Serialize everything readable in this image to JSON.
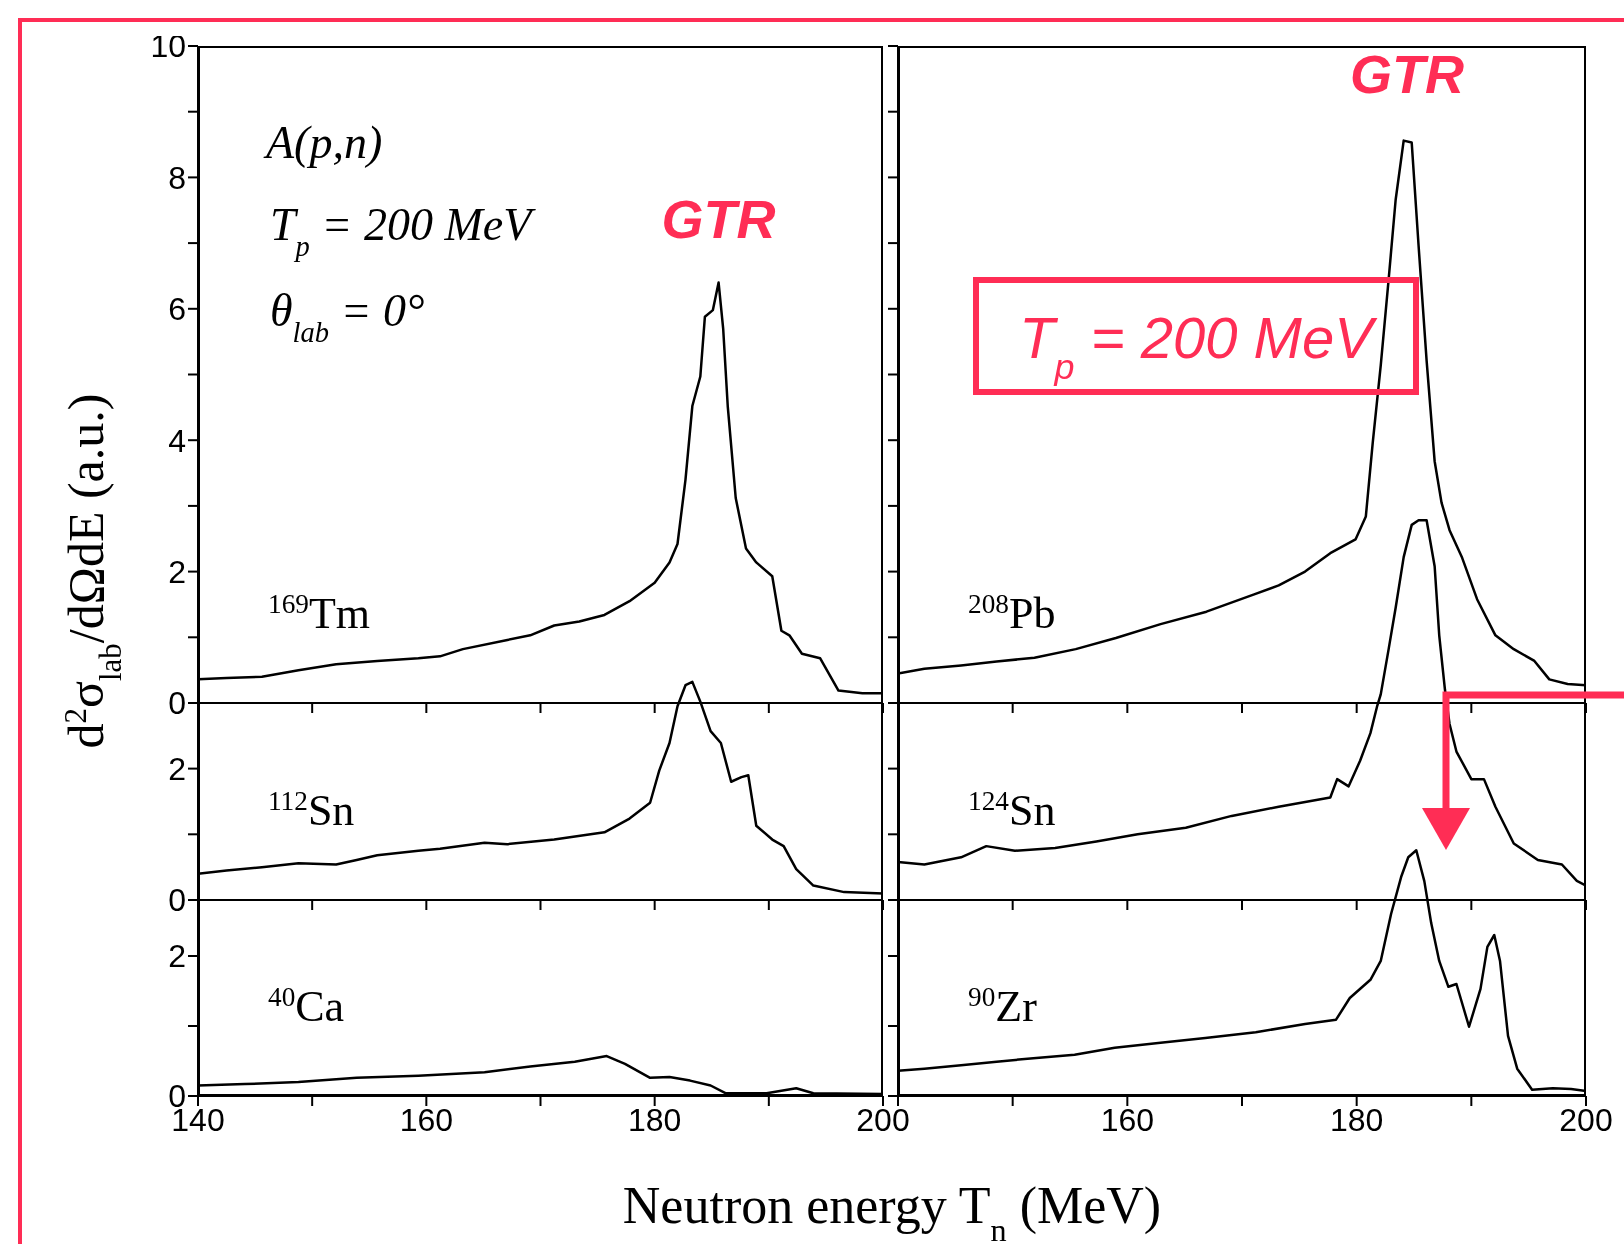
{
  "chart_data": [
    {
      "type": "line",
      "ylabel": "d$^{2}$σ$_{lab}$/dΩdE (a.u.)",
      "xlim": [
        140,
        200
      ],
      "xticks": [
        140,
        150,
        160,
        170,
        180,
        190,
        200
      ],
      "ylim": [
        0,
        10
      ],
      "yticks": [
        0,
        {
          "value": 1,
          "label": null
        },
        2,
        {
          "value": 3,
          "label": null
        },
        4,
        {
          "value": 5,
          "label": null
        },
        6,
        {
          "value": 7,
          "label": null
        },
        8,
        {
          "value": 9,
          "label": null
        },
        10
      ],
      "tick_labels": "y",
      "annotations": [
        "A(p,n)",
        "T$_{p}$ = 200 MeV",
        "θ$_{lab}$ = 0°",
        {
          "text": "GTR",
          "x": 185.6,
          "y": 6.4
        }
      ],
      "series": [
        {
          "name": "$^{169}$Tm",
          "color": "#000000",
          "x": [
            140,
            142.5,
            145.6,
            148.8,
            152.1,
            155.7,
            159.3,
            161.2,
            163.2,
            167.1,
            169.1,
            171.2,
            173.4,
            175.6,
            177.8,
            180,
            181.3,
            182,
            182.7,
            183.3,
            184,
            184.4,
            185.1,
            185.6,
            186,
            186.4,
            187.1,
            188,
            188.9,
            190.3,
            191.1,
            191.8,
            192.9,
            194.5,
            196.1,
            198.2,
            200
          ],
          "values": [
            0.36,
            0.38,
            0.4,
            0.5,
            0.59,
            0.64,
            0.68,
            0.71,
            0.82,
            0.96,
            1.03,
            1.18,
            1.24,
            1.34,
            1.55,
            1.83,
            2.14,
            2.42,
            3.4,
            4.52,
            4.97,
            5.88,
            5.98,
            6.4,
            5.7,
            4.52,
            3.12,
            2.35,
            2.14,
            1.93,
            1.1,
            1.03,
            0.75,
            0.68,
            0.19,
            0.15,
            0.15
          ]
        }
      ]
    },
    {
      "type": "line",
      "xlim": [
        140,
        200
      ],
      "xticks": [
        140,
        150,
        160,
        170,
        180,
        190,
        200
      ],
      "ylim": [
        0,
        10
      ],
      "yticks": [
        0,
        {
          "value": 1,
          "label": null
        },
        2,
        {
          "value": 3,
          "label": null
        },
        4,
        {
          "value": 5,
          "label": null
        },
        6,
        {
          "value": 7,
          "label": null
        },
        8,
        {
          "value": 9,
          "label": null
        },
        10
      ],
      "tick_labels": false,
      "annotations": [
        {
          "text": "GTR",
          "x": 184.4,
          "y": 8.6
        },
        "T$_{p}$ = 200 MeV"
      ],
      "series": [
        {
          "name": "$^{208}$Pb",
          "color": "#000000",
          "x": [
            140,
            142.3,
            145.5,
            148.6,
            151.9,
            155.5,
            159,
            162.9,
            166.9,
            171,
            173.2,
            175.5,
            177.7,
            179.9,
            180.8,
            181.4,
            182.1,
            182.8,
            183.4,
            184.1,
            184.8,
            185.4,
            186.1,
            186.8,
            187.4,
            188.1,
            189.2,
            190.5,
            192.1,
            193.7,
            195.5,
            196.8,
            198.4,
            200
          ],
          "values": [
            0.45,
            0.52,
            0.57,
            0.63,
            0.69,
            0.82,
            0.99,
            1.2,
            1.39,
            1.65,
            1.79,
            2,
            2.28,
            2.49,
            2.84,
            3.96,
            5.14,
            6.47,
            7.66,
            8.56,
            8.53,
            6.96,
            5.21,
            3.68,
            3.05,
            2.63,
            2.21,
            1.58,
            1.03,
            0.82,
            0.64,
            0.36,
            0.29,
            0.27
          ]
        }
      ]
    },
    {
      "type": "line",
      "xlim": [
        140,
        200
      ],
      "xticks": [
        140,
        150,
        160,
        170,
        180,
        190,
        200
      ],
      "ylim": [
        0,
        13
      ],
      "yticks": [
        0,
        {
          "value": 1,
          "label": null
        },
        2
      ],
      "tick_labels": "y",
      "series": [
        {
          "name": "$^{112}$Sn",
          "color": "#000000",
          "x": [
            140,
            142.5,
            145.6,
            148.8,
            152.1,
            153.9,
            155.7,
            159.3,
            161.2,
            165.1,
            167.1,
            171.2,
            175.6,
            177.8,
            179.6,
            180.4,
            181.3,
            182,
            182.7,
            183.3,
            184,
            184.9,
            185.8,
            186.7,
            187.6,
            188.2,
            188.9,
            190.3,
            191.3,
            192.4,
            193.9,
            196.6,
            200
          ],
          "values": [
            0.4,
            0.45,
            0.5,
            0.56,
            0.54,
            0.61,
            0.68,
            0.75,
            0.78,
            0.87,
            0.85,
            0.92,
            1.03,
            1.24,
            1.48,
            1.97,
            2.39,
            2.95,
            3.27,
            3.32,
            3.02,
            2.57,
            2.39,
            1.8,
            1.87,
            1.9,
            1.13,
            0.92,
            0.82,
            0.47,
            0.22,
            0.12,
            0.1
          ]
        }
      ]
    },
    {
      "type": "line",
      "xlim": [
        140,
        200
      ],
      "xticks": [
        140,
        150,
        160,
        170,
        180,
        190,
        200
      ],
      "ylim": [
        0,
        13
      ],
      "yticks": [
        0,
        {
          "value": 1,
          "label": null
        },
        2
      ],
      "tick_labels": false,
      "series": [
        {
          "name": "$^{124}$Sn",
          "color": "#000000",
          "x": [
            140,
            142.3,
            145.5,
            147.7,
            150.2,
            153.7,
            157.3,
            160.9,
            165.1,
            169.1,
            173.2,
            177.7,
            178.3,
            179.3,
            180.3,
            181.2,
            181.8,
            182.1,
            182.8,
            183.4,
            184.1,
            184.8,
            185.4,
            186.1,
            186.8,
            187.2,
            187.7,
            188.1,
            188.7,
            190,
            191.1,
            192.1,
            193.7,
            195.8,
            197.9,
            199.2,
            200
          ],
          "values": [
            0.58,
            0.54,
            0.65,
            0.82,
            0.75,
            0.79,
            0.89,
            1,
            1.1,
            1.28,
            1.42,
            1.56,
            1.84,
            1.73,
            2.12,
            2.54,
            2.96,
            3.13,
            3.83,
            4.45,
            5.22,
            5.71,
            5.78,
            5.78,
            5.08,
            4.03,
            3.2,
            2.68,
            2.26,
            1.84,
            1.84,
            1.42,
            0.86,
            0.61,
            0.54,
            0.29,
            0.22
          ]
        }
      ]
    },
    {
      "type": "line",
      "xlabel": "Neutron energy T$_{n}$ (MeV)",
      "xlim": [
        140,
        200
      ],
      "xticks": [
        140,
        {
          "value": 150,
          "label": null
        },
        160,
        {
          "value": 170,
          "label": null
        },
        180,
        {
          "value": 190,
          "label": null
        },
        200
      ],
      "ylim": [
        0,
        15
      ],
      "yticks": [
        0,
        {
          "value": 1,
          "label": null
        },
        2
      ],
      "series": [
        {
          "name": "$^{40}$Ca",
          "color": "#000000",
          "x": [
            140,
            144.1,
            148.8,
            153.9,
            159.3,
            165.1,
            169.1,
            173,
            175.8,
            177.4,
            179.6,
            181.3,
            183.1,
            184.9,
            186.2,
            189.8,
            192.4,
            193.9,
            200
          ],
          "values": [
            0.15,
            0.17,
            0.2,
            0.26,
            0.29,
            0.34,
            0.42,
            0.49,
            0.57,
            0.46,
            0.26,
            0.27,
            0.22,
            0.15,
            0.04,
            0.04,
            0.11,
            0.04,
            0.03
          ]
        }
      ]
    },
    {
      "type": "line",
      "xlim": [
        140,
        200
      ],
      "xticks": [
        {
          "value": 140,
          "label": null
        },
        {
          "value": 150,
          "label": null
        },
        160,
        {
          "value": 170,
          "label": null
        },
        180,
        {
          "value": 190,
          "label": null
        },
        200
      ],
      "ylim": [
        0,
        15
      ],
      "yticks": [
        0,
        {
          "value": 1,
          "label": null
        },
        2
      ],
      "tick_labels": "x",
      "series": [
        {
          "name": "$^{90}$Zr",
          "color": "#000000",
          "x": [
            140,
            142.3,
            145.5,
            148.6,
            151.8,
            155.4,
            158.9,
            162.9,
            166.8,
            171.2,
            175.5,
            178.2,
            179.4,
            181.2,
            182.1,
            183,
            183.9,
            184.5,
            185.2,
            185.9,
            186.5,
            187.2,
            188,
            188.7,
            189.8,
            190.8,
            191.4,
            192,
            192.5,
            193.2,
            194,
            195.3,
            197.1,
            198.7,
            200
          ],
          "values": [
            0.36,
            0.39,
            0.44,
            0.49,
            0.54,
            0.59,
            0.69,
            0.76,
            0.83,
            0.91,
            1.03,
            1.09,
            1.4,
            1.66,
            1.93,
            2.6,
            3.14,
            3.41,
            3.51,
            3.07,
            2.47,
            1.93,
            1.56,
            1.6,
            0.99,
            1.53,
            2.13,
            2.3,
            1.93,
            0.86,
            0.39,
            0.09,
            0.11,
            0.1,
            0.07
          ]
        }
      ]
    }
  ]
}
